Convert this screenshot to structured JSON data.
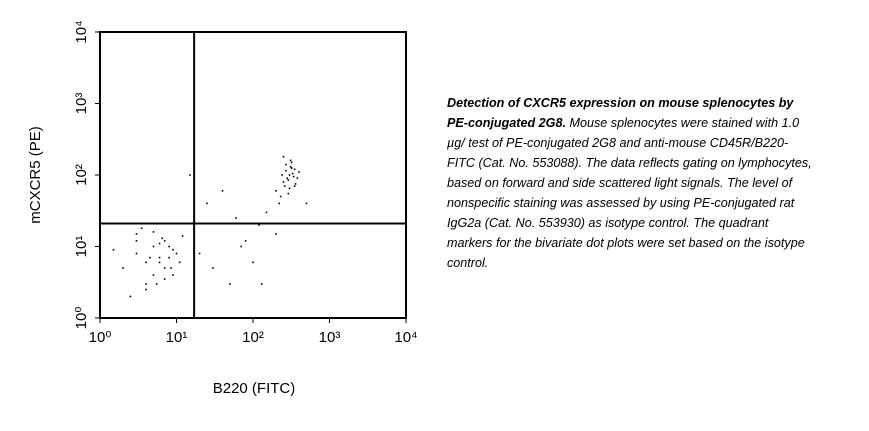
{
  "chart_data": {
    "type": "scatter",
    "xlabel": "B220 (FITC)",
    "ylabel": "mCXCR5 (PE)",
    "log_x": true,
    "log_y": true,
    "color": "#000000",
    "xlim": [
      1,
      10000
    ],
    "ylim": [
      1,
      10000
    ],
    "xticks": [
      {
        "value": 1,
        "label": "10⁰"
      },
      {
        "value": 10,
        "label": "10¹"
      },
      {
        "value": 100,
        "label": "10²"
      },
      {
        "value": 1000,
        "label": "10³"
      },
      {
        "value": 10000,
        "label": "10⁴"
      }
    ],
    "yticks": [
      {
        "value": 1,
        "label": "10⁰"
      },
      {
        "value": 10,
        "label": "10¹"
      },
      {
        "value": 100,
        "label": "10²"
      },
      {
        "value": 1000,
        "label": "10³"
      },
      {
        "value": 10000,
        "label": "10⁴"
      }
    ],
    "quadrant": {
      "x": 17,
      "y": 21
    },
    "x": [
      2,
      3,
      4,
      5,
      6,
      7,
      8,
      3,
      5,
      9,
      4,
      6,
      2.5,
      7,
      10,
      12,
      3.5,
      5.5,
      8,
      6,
      1.5,
      4,
      6.5,
      9,
      11,
      3,
      5,
      7,
      4.5,
      8.5,
      200,
      250,
      300,
      350,
      280,
      320,
      260,
      400,
      230,
      310,
      290,
      340,
      270,
      360,
      300,
      220,
      330,
      380,
      250,
      310,
      290,
      270,
      350,
      240,
      320,
      30,
      50,
      80,
      120,
      20,
      150,
      60,
      25,
      100,
      40,
      70,
      15,
      200,
      500,
      130
    ],
    "y": [
      5,
      8,
      3,
      10,
      6,
      12,
      7,
      15,
      4,
      9,
      6,
      11,
      2,
      5,
      8,
      14,
      18,
      3,
      10,
      7,
      9,
      2.5,
      13,
      4,
      6,
      12,
      16,
      3.5,
      7,
      5,
      60,
      80,
      100,
      120,
      90,
      150,
      70,
      110,
      50,
      130,
      85,
      95,
      140,
      75,
      65,
      40,
      105,
      90,
      180,
      160,
      55,
      115,
      70,
      100,
      125,
      5,
      3,
      12,
      20,
      8,
      30,
      25,
      40,
      6,
      60,
      10,
      100,
      15,
      40,
      3
    ]
  },
  "caption": {
    "bold": "Detection of CXCR5 expression on mouse splenocytes by PE-conjugated 2G8.",
    "text": "Mouse splenocytes were stained with 1.0 µg/ test of PE-conjugated 2G8 and anti-mouse CD45R/B220-FITC (Cat. No. 553088). The data reflects gating on lymphocytes, based on forward and side scattered light signals. The level of nonspecific staining was assessed by using PE-conjugated rat IgG2a (Cat. No. 553930) as isotype control. The quadrant markers for the bivariate dot plots were set based on the isotype control."
  }
}
